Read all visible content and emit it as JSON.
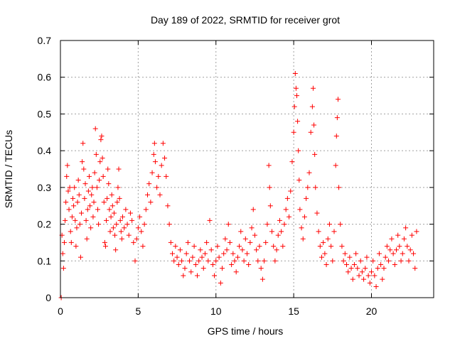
{
  "chart_data": {
    "type": "scatter",
    "title": "Day 189 of 2022, SRMTID for receiver grot",
    "xlabel": "GPS time / hours",
    "ylabel": "SRMTID / TECUs",
    "xlim": [
      0,
      24
    ],
    "ylim": [
      0,
      0.7
    ],
    "xticks": [
      0,
      5,
      10,
      15,
      20
    ],
    "yticks": [
      0,
      0.1,
      0.2,
      0.3,
      0.4,
      0.5,
      0.6,
      0.7
    ],
    "xtick_labels": [
      "0",
      "5",
      "10",
      "15",
      "20"
    ],
    "ytick_labels": [
      "0",
      "0.1",
      "0.2",
      "0.3",
      "0.4",
      "0.5",
      "0.6",
      "0.7"
    ],
    "grid": true,
    "marker": "+",
    "color": "#ff0000",
    "series": [
      {
        "name": "SRMTID",
        "points": [
          [
            0.05,
            0.0
          ],
          [
            0.1,
            0.17
          ],
          [
            0.15,
            0.12
          ],
          [
            0.2,
            0.08
          ],
          [
            0.25,
            0.15
          ],
          [
            0.3,
            0.21
          ],
          [
            0.35,
            0.26
          ],
          [
            0.4,
            0.33
          ],
          [
            0.45,
            0.36
          ],
          [
            0.5,
            0.29
          ],
          [
            0.55,
            0.24
          ],
          [
            0.6,
            0.3
          ],
          [
            0.65,
            0.18
          ],
          [
            0.7,
            0.15
          ],
          [
            0.75,
            0.22
          ],
          [
            0.8,
            0.27
          ],
          [
            0.85,
            0.25
          ],
          [
            0.9,
            0.3
          ],
          [
            0.95,
            0.21
          ],
          [
            1.0,
            0.14
          ],
          [
            1.05,
            0.19
          ],
          [
            1.1,
            0.26
          ],
          [
            1.15,
            0.32
          ],
          [
            1.2,
            0.28
          ],
          [
            1.25,
            0.2
          ],
          [
            1.3,
            0.11
          ],
          [
            1.35,
            0.23
          ],
          [
            1.4,
            0.37
          ],
          [
            1.45,
            0.42
          ],
          [
            1.5,
            0.35
          ],
          [
            1.55,
            0.27
          ],
          [
            1.6,
            0.31
          ],
          [
            1.65,
            0.21
          ],
          [
            1.7,
            0.16
          ],
          [
            1.75,
            0.24
          ],
          [
            1.8,
            0.29
          ],
          [
            1.85,
            0.33
          ],
          [
            1.9,
            0.25
          ],
          [
            1.95,
            0.19
          ],
          [
            2.0,
            0.28
          ],
          [
            2.05,
            0.3
          ],
          [
            2.1,
            0.22
          ],
          [
            2.15,
            0.26
          ],
          [
            2.2,
            0.34
          ],
          [
            2.25,
            0.46
          ],
          [
            2.3,
            0.39
          ],
          [
            2.35,
            0.3
          ],
          [
            2.4,
            0.24
          ],
          [
            2.45,
            0.2
          ],
          [
            2.5,
            0.32
          ],
          [
            2.55,
            0.37
          ],
          [
            2.6,
            0.43
          ],
          [
            2.65,
            0.44
          ],
          [
            2.7,
            0.38
          ],
          [
            2.75,
            0.33
          ],
          [
            2.8,
            0.26
          ],
          [
            2.85,
            0.15
          ],
          [
            2.9,
            0.14
          ],
          [
            2.95,
            0.21
          ],
          [
            3.0,
            0.27
          ],
          [
            3.05,
            0.35
          ],
          [
            3.1,
            0.31
          ],
          [
            3.15,
            0.24
          ],
          [
            3.2,
            0.18
          ],
          [
            3.25,
            0.22
          ],
          [
            3.3,
            0.28
          ],
          [
            3.35,
            0.25
          ],
          [
            3.4,
            0.19
          ],
          [
            3.45,
            0.23
          ],
          [
            3.5,
            0.17
          ],
          [
            3.55,
            0.13
          ],
          [
            3.6,
            0.2
          ],
          [
            3.65,
            0.26
          ],
          [
            3.7,
            0.3
          ],
          [
            3.75,
            0.35
          ],
          [
            3.8,
            0.27
          ],
          [
            3.85,
            0.21
          ],
          [
            3.9,
            0.18
          ],
          [
            3.95,
            0.16
          ],
          [
            4.0,
            0.22
          ],
          [
            4.1,
            0.19
          ],
          [
            4.2,
            0.24
          ],
          [
            4.3,
            0.2
          ],
          [
            4.4,
            0.17
          ],
          [
            4.5,
            0.23
          ],
          [
            4.6,
            0.21
          ],
          [
            4.7,
            0.15
          ],
          [
            4.8,
            0.1
          ],
          [
            4.9,
            0.16
          ],
          [
            5.0,
            0.19
          ],
          [
            5.1,
            0.22
          ],
          [
            5.2,
            0.18
          ],
          [
            5.3,
            0.14
          ],
          [
            5.4,
            0.2
          ],
          [
            5.5,
            0.24
          ],
          [
            5.6,
            0.28
          ],
          [
            5.7,
            0.31
          ],
          [
            5.8,
            0.26
          ],
          [
            5.9,
            0.34
          ],
          [
            6.0,
            0.39
          ],
          [
            6.05,
            0.42
          ],
          [
            6.1,
            0.37
          ],
          [
            6.2,
            0.3
          ],
          [
            6.3,
            0.33
          ],
          [
            6.4,
            0.28
          ],
          [
            6.5,
            0.36
          ],
          [
            6.6,
            0.42
          ],
          [
            6.7,
            0.38
          ],
          [
            6.8,
            0.33
          ],
          [
            6.9,
            0.25
          ],
          [
            7.0,
            0.2
          ],
          [
            7.1,
            0.15
          ],
          [
            7.2,
            0.12
          ],
          [
            7.3,
            0.1
          ],
          [
            7.4,
            0.14
          ],
          [
            7.5,
            0.11
          ],
          [
            7.6,
            0.09
          ],
          [
            7.7,
            0.13
          ],
          [
            7.8,
            0.1
          ],
          [
            7.9,
            0.06
          ],
          [
            8.0,
            0.08
          ],
          [
            8.1,
            0.12
          ],
          [
            8.2,
            0.15
          ],
          [
            8.3,
            0.1
          ],
          [
            8.4,
            0.07
          ],
          [
            8.5,
            0.11
          ],
          [
            8.6,
            0.14
          ],
          [
            8.7,
            0.09
          ],
          [
            8.8,
            0.06
          ],
          [
            8.9,
            0.1
          ],
          [
            9.0,
            0.13
          ],
          [
            9.1,
            0.11
          ],
          [
            9.2,
            0.08
          ],
          [
            9.3,
            0.12
          ],
          [
            9.4,
            0.15
          ],
          [
            9.5,
            0.1
          ],
          [
            9.6,
            0.21
          ],
          [
            9.7,
            0.13
          ],
          [
            9.8,
            0.09
          ],
          [
            9.9,
            0.06
          ],
          [
            10.0,
            0.1
          ],
          [
            10.1,
            0.14
          ],
          [
            10.2,
            0.11
          ],
          [
            10.3,
            0.04
          ],
          [
            10.4,
            0.08
          ],
          [
            10.5,
            0.12
          ],
          [
            10.6,
            0.16
          ],
          [
            10.7,
            0.13
          ],
          [
            10.8,
            0.2
          ],
          [
            10.9,
            0.15
          ],
          [
            11.0,
            0.09
          ],
          [
            11.1,
            0.12
          ],
          [
            11.2,
            0.1
          ],
          [
            11.3,
            0.07
          ],
          [
            11.4,
            0.11
          ],
          [
            11.5,
            0.14
          ],
          [
            11.6,
            0.18
          ],
          [
            11.7,
            0.13
          ],
          [
            11.8,
            0.1
          ],
          [
            11.9,
            0.16
          ],
          [
            12.0,
            0.12
          ],
          [
            12.1,
            0.09
          ],
          [
            12.2,
            0.15
          ],
          [
            12.3,
            0.19
          ],
          [
            12.4,
            0.24
          ],
          [
            12.5,
            0.17
          ],
          [
            12.6,
            0.13
          ],
          [
            12.7,
            0.1
          ],
          [
            12.8,
            0.14
          ],
          [
            12.9,
            0.08
          ],
          [
            13.0,
            0.05
          ],
          [
            13.1,
            0.1
          ],
          [
            13.2,
            0.15
          ],
          [
            13.3,
            0.2
          ],
          [
            13.4,
            0.36
          ],
          [
            13.45,
            0.3
          ],
          [
            13.5,
            0.25
          ],
          [
            13.6,
            0.18
          ],
          [
            13.7,
            0.14
          ],
          [
            13.8,
            0.1
          ],
          [
            13.9,
            0.13
          ],
          [
            14.0,
            0.17
          ],
          [
            14.1,
            0.21
          ],
          [
            14.2,
            0.18
          ],
          [
            14.3,
            0.14
          ],
          [
            14.4,
            0.2
          ],
          [
            14.5,
            0.24
          ],
          [
            14.6,
            0.27
          ],
          [
            14.7,
            0.22
          ],
          [
            14.8,
            0.29
          ],
          [
            14.9,
            0.37
          ],
          [
            15.0,
            0.45
          ],
          [
            15.05,
            0.52
          ],
          [
            15.1,
            0.61
          ],
          [
            15.15,
            0.57
          ],
          [
            15.2,
            0.55
          ],
          [
            15.25,
            0.48
          ],
          [
            15.3,
            0.4
          ],
          [
            15.35,
            0.32
          ],
          [
            15.4,
            0.24
          ],
          [
            15.5,
            0.19
          ],
          [
            15.6,
            0.16
          ],
          [
            15.7,
            0.22
          ],
          [
            15.8,
            0.27
          ],
          [
            15.9,
            0.3
          ],
          [
            16.0,
            0.34
          ],
          [
            16.1,
            0.45
          ],
          [
            16.2,
            0.52
          ],
          [
            16.25,
            0.57
          ],
          [
            16.3,
            0.47
          ],
          [
            16.35,
            0.39
          ],
          [
            16.4,
            0.3
          ],
          [
            16.5,
            0.23
          ],
          [
            16.6,
            0.18
          ],
          [
            16.7,
            0.14
          ],
          [
            16.8,
            0.11
          ],
          [
            16.9,
            0.15
          ],
          [
            17.0,
            0.12
          ],
          [
            17.1,
            0.09
          ],
          [
            17.2,
            0.16
          ],
          [
            17.3,
            0.2
          ],
          [
            17.4,
            0.14
          ],
          [
            17.5,
            0.1
          ],
          [
            17.6,
            0.18
          ],
          [
            17.7,
            0.36
          ],
          [
            17.75,
            0.44
          ],
          [
            17.8,
            0.49
          ],
          [
            17.85,
            0.54
          ],
          [
            17.9,
            0.3
          ],
          [
            18.0,
            0.2
          ],
          [
            18.1,
            0.14
          ],
          [
            18.2,
            0.1
          ],
          [
            18.3,
            0.12
          ],
          [
            18.4,
            0.09
          ],
          [
            18.5,
            0.07
          ],
          [
            18.6,
            0.11
          ],
          [
            18.7,
            0.08
          ],
          [
            18.8,
            0.05
          ],
          [
            18.9,
            0.09
          ],
          [
            19.0,
            0.12
          ],
          [
            19.1,
            0.08
          ],
          [
            19.2,
            0.06
          ],
          [
            19.3,
            0.1
          ],
          [
            19.4,
            0.07
          ],
          [
            19.5,
            0.05
          ],
          [
            19.6,
            0.08
          ],
          [
            19.7,
            0.11
          ],
          [
            19.8,
            0.06
          ],
          [
            19.9,
            0.04
          ],
          [
            20.0,
            0.07
          ],
          [
            20.1,
            0.1
          ],
          [
            20.2,
            0.06
          ],
          [
            20.3,
            0.03
          ],
          [
            20.4,
            0.08
          ],
          [
            20.5,
            0.12
          ],
          [
            20.6,
            0.09
          ],
          [
            20.7,
            0.05
          ],
          [
            20.8,
            0.08
          ],
          [
            20.9,
            0.11
          ],
          [
            21.0,
            0.14
          ],
          [
            21.1,
            0.1
          ],
          [
            21.2,
            0.13
          ],
          [
            21.3,
            0.16
          ],
          [
            21.4,
            0.12
          ],
          [
            21.5,
            0.09
          ],
          [
            21.6,
            0.13
          ],
          [
            21.7,
            0.17
          ],
          [
            21.8,
            0.14
          ],
          [
            21.9,
            0.1
          ],
          [
            22.0,
            0.12
          ],
          [
            22.1,
            0.16
          ],
          [
            22.2,
            0.19
          ],
          [
            22.3,
            0.14
          ],
          [
            22.4,
            0.1
          ],
          [
            22.5,
            0.13
          ],
          [
            22.6,
            0.17
          ],
          [
            22.7,
            0.12
          ],
          [
            22.8,
            0.08
          ],
          [
            22.9,
            0.18
          ]
        ]
      }
    ]
  }
}
